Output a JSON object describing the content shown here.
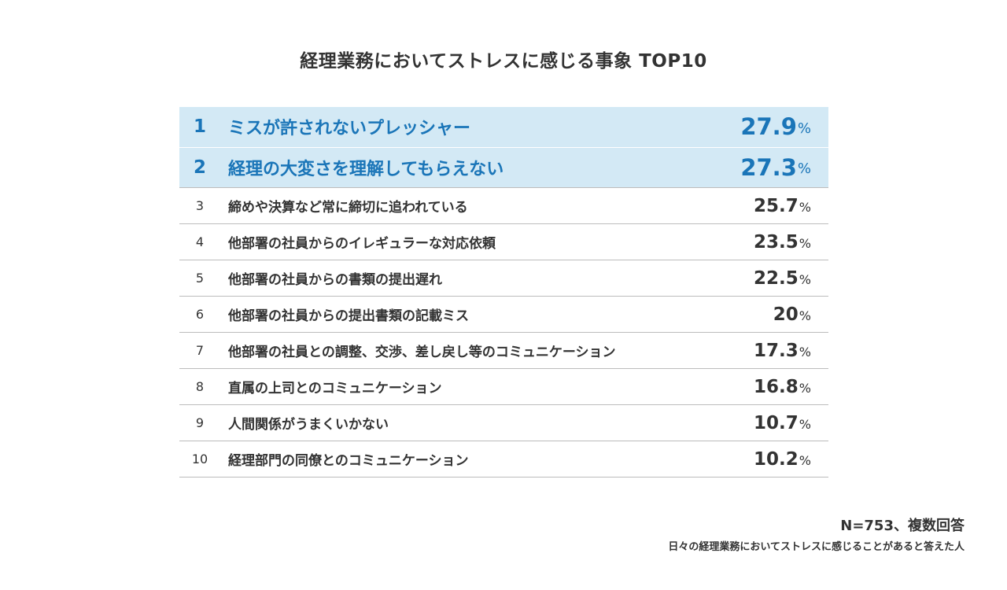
{
  "chart_data": {
    "type": "table",
    "title": "経理業務においてストレスに感じる事象 TOP10",
    "unit": "%",
    "rows": [
      {
        "rank": "1",
        "label": "ミスが許されないプレッシャー",
        "value": "27.9"
      },
      {
        "rank": "2",
        "label": "経理の大変さを理解してもらえない",
        "value": "27.3"
      },
      {
        "rank": "3",
        "label": "締めや決算など常に締切に追われている",
        "value": "25.7"
      },
      {
        "rank": "4",
        "label": "他部署の社員からのイレギュラーな対応依頼",
        "value": "23.5"
      },
      {
        "rank": "5",
        "label": "他部署の社員からの書類の提出遅れ",
        "value": "22.5"
      },
      {
        "rank": "6",
        "label": "他部署の社員からの提出書類の記載ミス",
        "value": "20"
      },
      {
        "rank": "7",
        "label": "他部署の社員との調整、交渉、差し戻し等のコミュニケーション",
        "value": "17.3"
      },
      {
        "rank": "8",
        "label": "直属の上司とのコミュニケーション",
        "value": "16.8"
      },
      {
        "rank": "9",
        "label": "人間関係がうまくいかない",
        "value": "10.7"
      },
      {
        "rank": "10",
        "label": "経理部門の同僚とのコミュニケーション",
        "value": "10.2"
      }
    ],
    "highlight_color": "#d3e9f5",
    "highlight_text_color": "#1a75b8"
  },
  "notes": {
    "sample": "N=753、複数回答",
    "description": "日々の経理業務においてストレスに感じることがあると答えた人"
  }
}
